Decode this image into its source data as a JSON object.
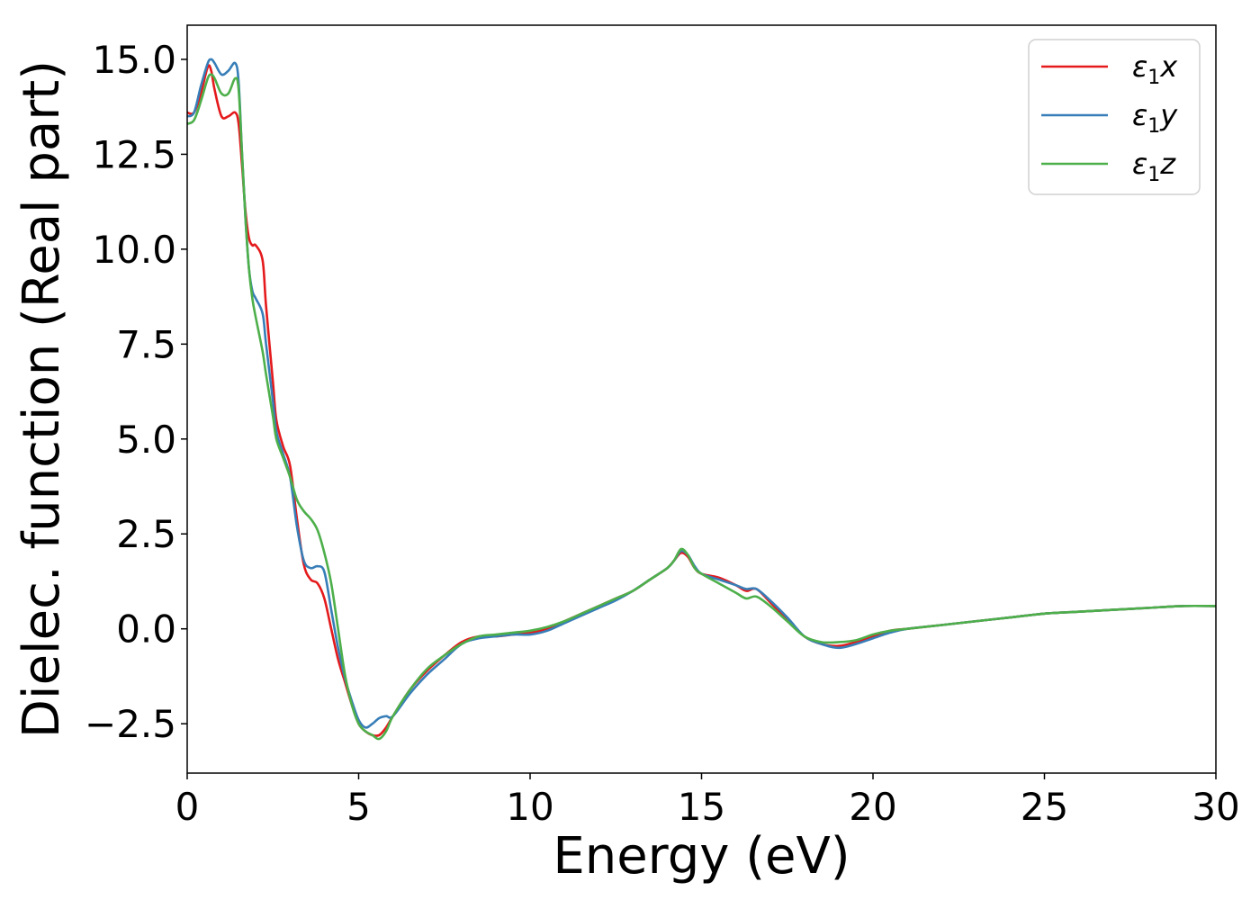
{
  "chart_data": {
    "type": "line",
    "title": "",
    "xlabel": "Energy (eV)",
    "ylabel": "Dielec. function (Real part)",
    "xlim": [
      0,
      30
    ],
    "ylim": [
      -3.8,
      15.9
    ],
    "xticks": [
      0,
      5,
      10,
      15,
      20,
      25,
      30
    ],
    "xtick_labels": [
      "0",
      "5",
      "10",
      "15",
      "20",
      "25",
      "30"
    ],
    "yticks": [
      -2.5,
      0.0,
      2.5,
      5.0,
      7.5,
      10.0,
      12.5,
      15.0
    ],
    "ytick_labels": [
      "−2.5",
      "0.0",
      "2.5",
      "5.0",
      "7.5",
      "10.0",
      "12.5",
      "15.0"
    ],
    "grid": false,
    "legend_position": "top-right",
    "series": [
      {
        "name": "ε1x",
        "legend_main": "ε",
        "legend_sub": "1",
        "legend_tail": "x",
        "color": "#e41a1c",
        "x": [
          0,
          0.2,
          0.4,
          0.6,
          0.7,
          0.8,
          1.0,
          1.2,
          1.4,
          1.5,
          1.6,
          1.7,
          1.8,
          1.9,
          2.0,
          2.2,
          2.3,
          2.5,
          2.6,
          2.8,
          3.0,
          3.2,
          3.4,
          3.6,
          3.8,
          4.0,
          4.2,
          4.4,
          4.6,
          4.8,
          5.0,
          5.2,
          5.4,
          5.6,
          5.8,
          6.0,
          6.5,
          7.0,
          7.5,
          8.0,
          8.5,
          9.0,
          9.5,
          10.0,
          10.5,
          11.0,
          11.5,
          12.0,
          12.5,
          13.0,
          13.5,
          14.0,
          14.2,
          14.4,
          14.6,
          14.8,
          15.0,
          15.5,
          16.0,
          16.3,
          16.6,
          17.0,
          17.5,
          18.0,
          18.5,
          19.0,
          19.5,
          20.0,
          20.5,
          21.0,
          22.0,
          23.0,
          24.0,
          25.0,
          26.0,
          27.0,
          28.0,
          29.0,
          30.0
        ],
        "y": [
          13.6,
          13.6,
          14.1,
          14.8,
          14.7,
          14.2,
          13.5,
          13.5,
          13.6,
          13.3,
          12.2,
          11.0,
          10.3,
          10.1,
          10.1,
          9.7,
          8.5,
          6.5,
          5.5,
          4.8,
          4.3,
          2.9,
          1.7,
          1.3,
          1.2,
          0.8,
          0.0,
          -0.8,
          -1.4,
          -2.0,
          -2.5,
          -2.7,
          -2.8,
          -2.8,
          -2.6,
          -2.3,
          -1.6,
          -1.1,
          -0.7,
          -0.35,
          -0.2,
          -0.2,
          -0.15,
          -0.1,
          0.0,
          0.2,
          0.4,
          0.6,
          0.8,
          1.0,
          1.3,
          1.6,
          1.8,
          2.0,
          1.9,
          1.6,
          1.45,
          1.35,
          1.15,
          1.0,
          1.05,
          0.7,
          0.25,
          -0.2,
          -0.4,
          -0.45,
          -0.35,
          -0.2,
          -0.05,
          0.0,
          0.1,
          0.2,
          0.3,
          0.4,
          0.45,
          0.5,
          0.55,
          0.6,
          0.6
        ]
      },
      {
        "name": "ε1y",
        "legend_main": "ε",
        "legend_sub": "1",
        "legend_tail": "y",
        "color": "#377eb8",
        "x": [
          0,
          0.2,
          0.4,
          0.6,
          0.7,
          0.8,
          1.0,
          1.2,
          1.4,
          1.5,
          1.6,
          1.7,
          1.8,
          1.9,
          2.0,
          2.2,
          2.3,
          2.5,
          2.6,
          2.8,
          3.0,
          3.2,
          3.4,
          3.6,
          3.8,
          4.0,
          4.2,
          4.4,
          4.6,
          4.8,
          5.0,
          5.2,
          5.4,
          5.6,
          5.8,
          6.0,
          6.5,
          7.0,
          7.5,
          8.0,
          8.5,
          9.0,
          9.5,
          10.0,
          10.5,
          11.0,
          11.5,
          12.0,
          12.5,
          13.0,
          13.5,
          14.0,
          14.2,
          14.4,
          14.6,
          14.8,
          15.0,
          15.5,
          16.0,
          16.3,
          16.6,
          17.0,
          17.5,
          18.0,
          18.5,
          19.0,
          19.5,
          20.0,
          20.5,
          21.0,
          22.0,
          23.0,
          24.0,
          25.0,
          26.0,
          27.0,
          28.0,
          29.0,
          30.0
        ],
        "y": [
          13.5,
          13.6,
          14.3,
          14.9,
          15.0,
          14.9,
          14.6,
          14.7,
          14.9,
          14.4,
          12.5,
          10.8,
          9.5,
          8.9,
          8.7,
          8.3,
          7.5,
          6.0,
          5.2,
          4.6,
          4.0,
          2.7,
          1.8,
          1.6,
          1.65,
          1.5,
          0.5,
          -0.5,
          -1.3,
          -1.9,
          -2.4,
          -2.6,
          -2.5,
          -2.35,
          -2.3,
          -2.3,
          -1.7,
          -1.2,
          -0.8,
          -0.4,
          -0.25,
          -0.2,
          -0.15,
          -0.15,
          -0.05,
          0.15,
          0.35,
          0.55,
          0.75,
          1.0,
          1.3,
          1.6,
          1.8,
          2.05,
          1.95,
          1.65,
          1.45,
          1.3,
          1.15,
          1.05,
          1.05,
          0.75,
          0.3,
          -0.2,
          -0.4,
          -0.5,
          -0.4,
          -0.25,
          -0.1,
          0.0,
          0.1,
          0.2,
          0.3,
          0.4,
          0.45,
          0.5,
          0.55,
          0.6,
          0.6
        ]
      },
      {
        "name": "ε1z",
        "legend_main": "ε",
        "legend_sub": "1",
        "legend_tail": "z",
        "color": "#4daf4a",
        "x": [
          0,
          0.2,
          0.4,
          0.6,
          0.7,
          0.8,
          1.0,
          1.2,
          1.4,
          1.5,
          1.6,
          1.7,
          1.8,
          1.9,
          2.0,
          2.2,
          2.3,
          2.5,
          2.6,
          2.8,
          3.0,
          3.2,
          3.4,
          3.6,
          3.8,
          4.0,
          4.2,
          4.4,
          4.6,
          4.8,
          5.0,
          5.2,
          5.4,
          5.6,
          5.8,
          6.0,
          6.5,
          7.0,
          7.5,
          8.0,
          8.5,
          9.0,
          9.5,
          10.0,
          10.5,
          11.0,
          11.5,
          12.0,
          12.5,
          13.0,
          13.5,
          14.0,
          14.2,
          14.4,
          14.6,
          14.8,
          15.0,
          15.5,
          16.0,
          16.3,
          16.6,
          17.0,
          17.5,
          18.0,
          18.5,
          19.0,
          19.5,
          20.0,
          20.5,
          21.0,
          22.0,
          23.0,
          24.0,
          25.0,
          26.0,
          27.0,
          28.0,
          29.0,
          30.0
        ],
        "y": [
          13.3,
          13.4,
          13.9,
          14.5,
          14.6,
          14.5,
          14.1,
          14.1,
          14.5,
          14.2,
          12.5,
          10.8,
          9.5,
          8.7,
          8.2,
          7.3,
          6.7,
          5.6,
          5.0,
          4.5,
          4.0,
          3.4,
          3.1,
          2.9,
          2.6,
          2.0,
          1.2,
          0.0,
          -1.2,
          -2.0,
          -2.5,
          -2.7,
          -2.8,
          -2.9,
          -2.7,
          -2.3,
          -1.6,
          -1.05,
          -0.7,
          -0.4,
          -0.2,
          -0.15,
          -0.1,
          -0.05,
          0.05,
          0.2,
          0.4,
          0.6,
          0.8,
          1.0,
          1.3,
          1.6,
          1.8,
          2.1,
          1.95,
          1.6,
          1.45,
          1.2,
          0.95,
          0.8,
          0.85,
          0.6,
          0.2,
          -0.2,
          -0.35,
          -0.35,
          -0.3,
          -0.15,
          -0.05,
          0.0,
          0.1,
          0.2,
          0.3,
          0.4,
          0.45,
          0.5,
          0.55,
          0.6,
          0.6
        ]
      }
    ]
  }
}
